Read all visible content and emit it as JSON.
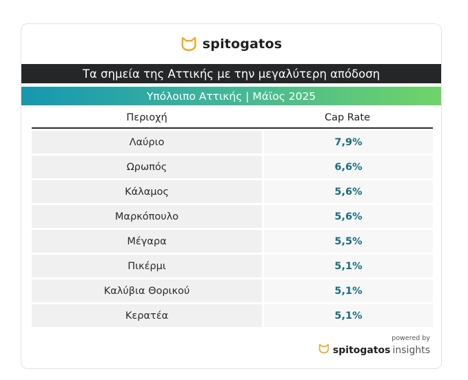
{
  "brand": {
    "name": "spitogatos",
    "icon": "cat-head-icon",
    "accent_color": "#f5a623"
  },
  "header": {
    "title": "Τα σημεία της Αττικής με την μεγαλύτερη απόδοση",
    "subtitle": "Υπόλοιπο Αττικής | Μάϊος 2025"
  },
  "table": {
    "columns": [
      "Περιοχή",
      "Cap Rate"
    ],
    "value_color": "#1a6e80",
    "rows": [
      {
        "area": "Λαύριο",
        "cap_rate": "7,9%"
      },
      {
        "area": "Ωρωπός",
        "cap_rate": "6,6%"
      },
      {
        "area": "Κάλαμος",
        "cap_rate": "5,6%"
      },
      {
        "area": "Μαρκόπουλο",
        "cap_rate": "5,6%"
      },
      {
        "area": "Μέγαρα",
        "cap_rate": "5,5%"
      },
      {
        "area": "Πικέρμι",
        "cap_rate": "5,1%"
      },
      {
        "area": "Καλύβια Θορικού",
        "cap_rate": "5,1%"
      },
      {
        "area": "Κερατέα",
        "cap_rate": "5,1%"
      }
    ]
  },
  "footer": {
    "powered_by": "powered by",
    "brand": "spitogatos",
    "product": "insights"
  }
}
